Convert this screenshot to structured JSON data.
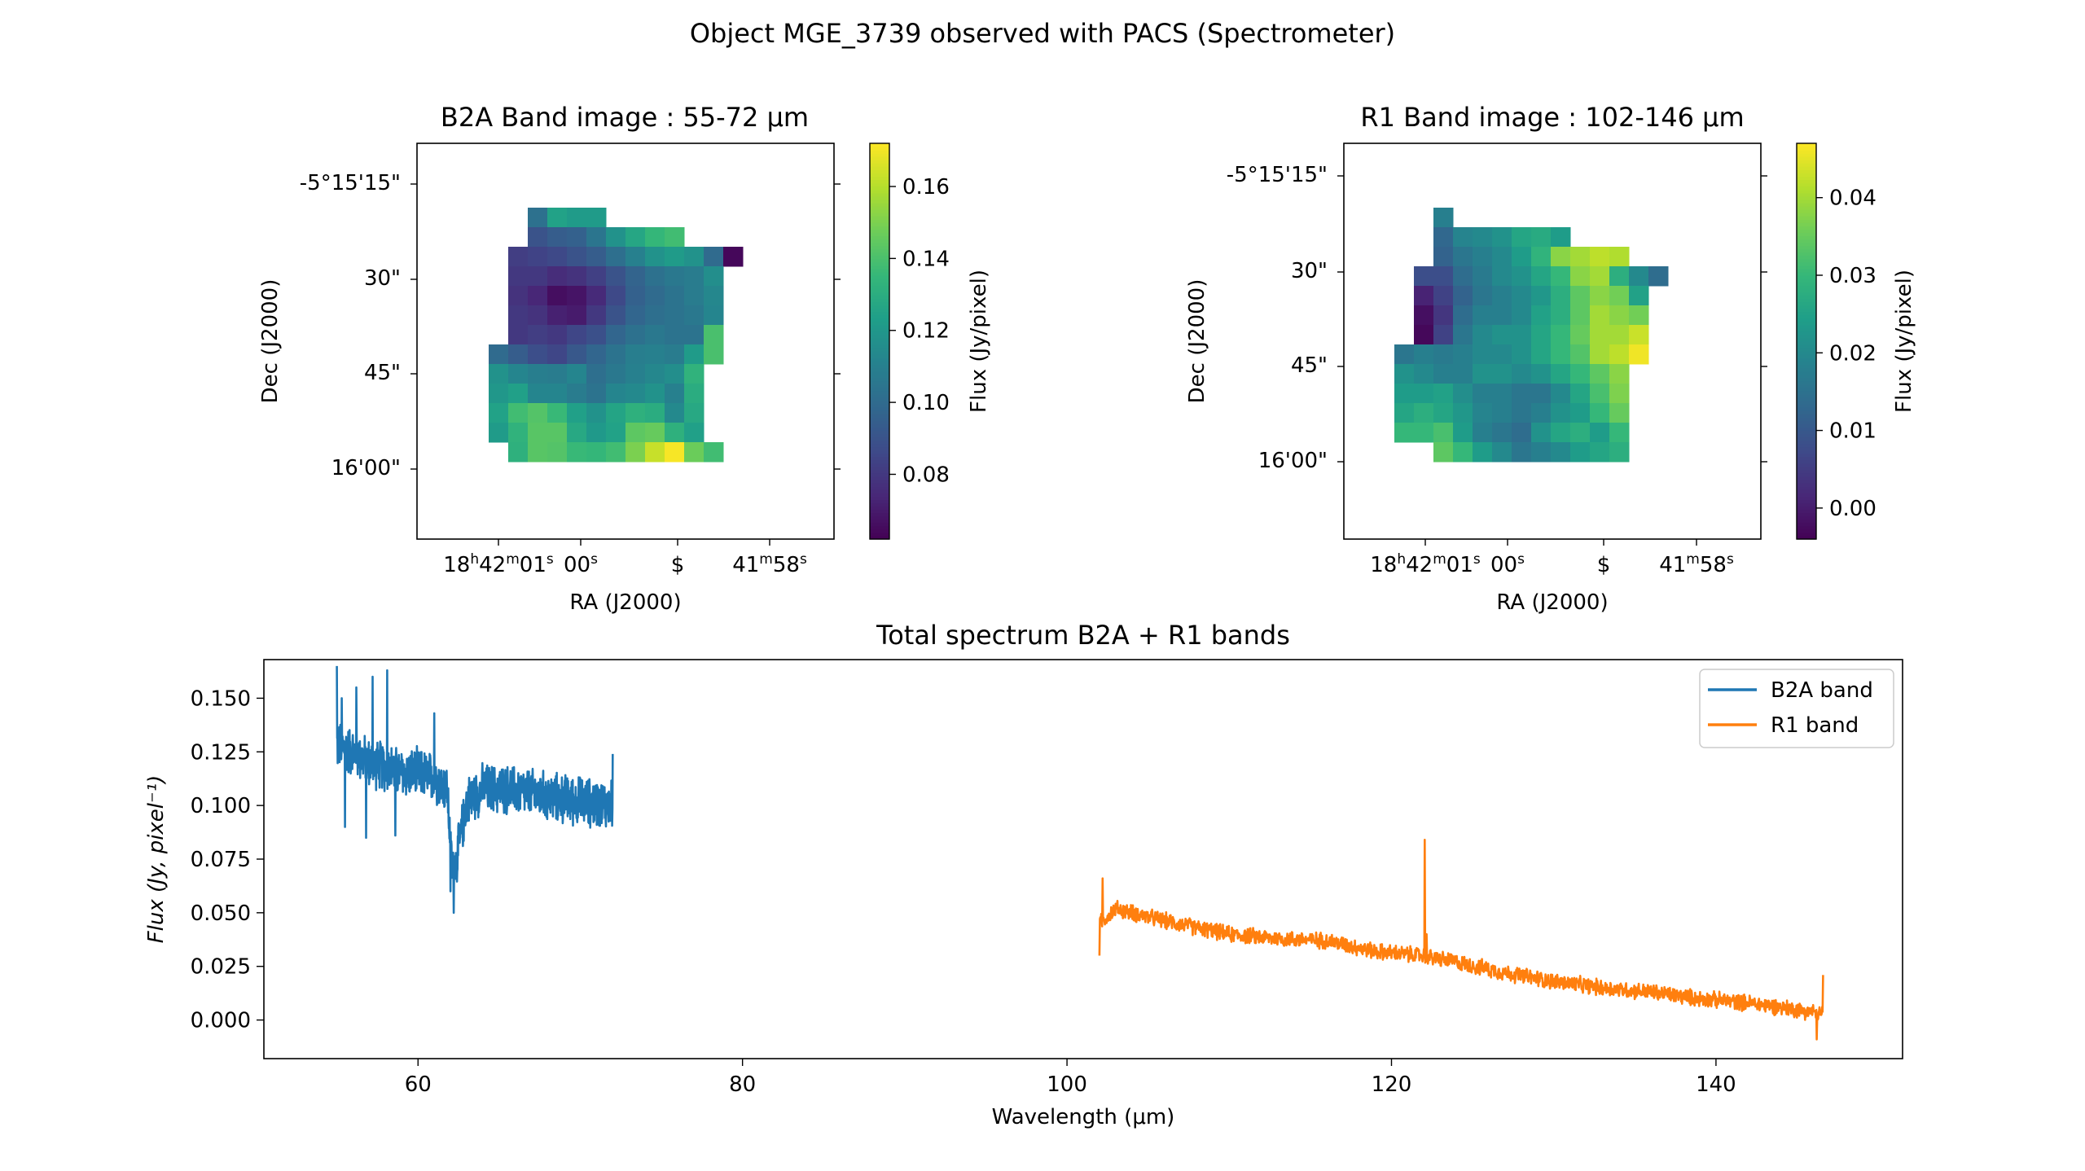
{
  "figure": {
    "title": "Object MGE_3739 observed with PACS (Spectrometer)"
  },
  "chart_data": [
    {
      "type": "heatmap",
      "title": "B2A Band image : 55-72 μm",
      "xlabel": "RA (J2000)",
      "ylabel": "Dec (J2000)",
      "x_ticks": [
        {
          "main": "18",
          "sup1": "h",
          "mid": "42",
          "sup2": "m",
          "end": "01",
          "sup3": "s"
        },
        {
          "main": "00",
          "sup3": "s"
        },
        {
          "main": "$"
        },
        {
          "main": "41",
          "sup2": "m",
          "end": "58",
          "sup3": "s"
        }
      ],
      "y_ticks": [
        "-5°15'15\"",
        "30\"",
        "45\"",
        "16'00\""
      ],
      "colorbar": {
        "label": "Flux (Jy/pixel)",
        "range": [
          0.062,
          0.172
        ],
        "ticks": [
          0.08,
          0.1,
          0.12,
          0.14,
          0.16
        ],
        "tick_labels": [
          "0.08",
          "0.10",
          "0.12",
          "0.14",
          "0.16"
        ]
      },
      "grid": [
        [
          null,
          null,
          null,
          null,
          null,
          null,
          null,
          null,
          null,
          null,
          null,
          null,
          null,
          null,
          null
        ],
        [
          null,
          null,
          0.103,
          0.125,
          0.122,
          0.122,
          null,
          null,
          null,
          null,
          null,
          null,
          null,
          null,
          null
        ],
        [
          null,
          null,
          0.09,
          0.094,
          0.096,
          0.105,
          0.118,
          0.127,
          0.135,
          0.138,
          null,
          null,
          null,
          null,
          null
        ],
        [
          null,
          0.082,
          0.084,
          0.086,
          0.09,
          0.094,
          0.102,
          0.11,
          0.118,
          0.122,
          0.118,
          0.1,
          0.064,
          null,
          null
        ],
        [
          null,
          0.08,
          0.08,
          0.076,
          0.078,
          0.083,
          0.09,
          0.097,
          0.103,
          0.106,
          0.108,
          0.116,
          null,
          null,
          null
        ],
        [
          null,
          0.078,
          0.074,
          0.066,
          0.068,
          0.075,
          0.086,
          0.096,
          0.1,
          0.104,
          0.108,
          0.113,
          null,
          null,
          null
        ],
        [
          null,
          0.08,
          0.078,
          0.072,
          0.07,
          0.08,
          0.09,
          0.098,
          0.102,
          0.104,
          0.106,
          0.112,
          null,
          null,
          null
        ],
        [
          null,
          0.08,
          0.082,
          0.08,
          0.085,
          0.089,
          0.098,
          0.103,
          0.106,
          0.104,
          0.104,
          0.14,
          null,
          null,
          null
        ],
        [
          0.1,
          0.094,
          0.088,
          0.085,
          0.092,
          0.098,
          0.104,
          0.109,
          0.11,
          0.108,
          0.122,
          0.14,
          null,
          null,
          null
        ],
        [
          0.118,
          0.112,
          0.109,
          0.108,
          0.112,
          0.102,
          0.106,
          0.11,
          0.113,
          0.116,
          0.133,
          null,
          null,
          null,
          null
        ],
        [
          0.12,
          0.124,
          0.112,
          0.112,
          0.108,
          0.104,
          0.112,
          0.114,
          0.118,
          0.11,
          0.13,
          null,
          null,
          null,
          null
        ],
        [
          0.125,
          0.138,
          0.142,
          0.136,
          0.124,
          0.118,
          0.126,
          0.132,
          0.13,
          0.114,
          0.128,
          null,
          null,
          null,
          null
        ],
        [
          0.122,
          0.133,
          0.143,
          0.143,
          0.128,
          0.121,
          0.125,
          0.144,
          0.146,
          0.132,
          0.124,
          null,
          null,
          null,
          null
        ],
        [
          null,
          0.132,
          0.143,
          0.142,
          0.136,
          0.135,
          0.138,
          0.15,
          0.163,
          0.171,
          0.147,
          0.138,
          null,
          null,
          null
        ],
        [
          null,
          null,
          null,
          null,
          null,
          null,
          null,
          null,
          null,
          null,
          null,
          null,
          null,
          null,
          null
        ]
      ]
    },
    {
      "type": "heatmap",
      "title": "R1 Band image : 102-146 μm",
      "xlabel": "RA (J2000)",
      "ylabel": "Dec (J2000)",
      "x_ticks": [
        {
          "main": "18",
          "sup1": "h",
          "mid": "42",
          "sup2": "m",
          "end": "01",
          "sup3": "s"
        },
        {
          "main": "00",
          "sup3": "s"
        },
        {
          "main": "$"
        },
        {
          "main": "41",
          "sup2": "m",
          "end": "58",
          "sup3": "s"
        }
      ],
      "y_ticks": [
        "-5°15'15\"",
        "30\"",
        "45\"",
        "16'00\""
      ],
      "colorbar": {
        "label": "Flux (Jy/pixel)",
        "range": [
          -0.004,
          0.047
        ],
        "ticks": [
          0.0,
          0.01,
          0.02,
          0.03,
          0.04
        ],
        "tick_labels": [
          "0.00",
          "0.01",
          "0.02",
          "0.03",
          "0.04"
        ]
      },
      "grid": [
        [
          null,
          null,
          null,
          null,
          null,
          null,
          null,
          null,
          null,
          null,
          null,
          null,
          null,
          null,
          null
        ],
        [
          null,
          null,
          0.018,
          null,
          null,
          null,
          null,
          null,
          null,
          null,
          null,
          null,
          null,
          null,
          null
        ],
        [
          null,
          null,
          0.013,
          0.019,
          0.02,
          0.022,
          0.026,
          0.027,
          0.024,
          null,
          null,
          null,
          null,
          null,
          null
        ],
        [
          null,
          null,
          0.012,
          0.016,
          0.018,
          0.02,
          0.024,
          0.029,
          0.038,
          0.04,
          0.042,
          0.041,
          null,
          null,
          null
        ],
        [
          null,
          0.008,
          0.008,
          0.014,
          0.017,
          0.02,
          0.022,
          0.026,
          0.03,
          0.038,
          0.04,
          0.028,
          0.02,
          0.014,
          null
        ],
        [
          null,
          0.001,
          0.006,
          0.012,
          0.016,
          0.018,
          0.02,
          0.023,
          0.028,
          0.034,
          0.038,
          0.036,
          0.025,
          null,
          null
        ],
        [
          null,
          -0.002,
          0.004,
          0.014,
          0.018,
          0.018,
          0.02,
          0.025,
          0.028,
          0.034,
          0.04,
          0.038,
          0.036,
          null,
          null
        ],
        [
          null,
          -0.003,
          0.006,
          0.016,
          0.02,
          0.022,
          0.022,
          0.026,
          0.03,
          0.035,
          0.04,
          0.04,
          0.043,
          null,
          null
        ],
        [
          0.016,
          0.018,
          0.017,
          0.018,
          0.02,
          0.02,
          0.022,
          0.026,
          0.03,
          0.033,
          0.04,
          0.042,
          0.046,
          null,
          null
        ],
        [
          0.022,
          0.02,
          0.018,
          0.018,
          0.022,
          0.022,
          0.02,
          0.022,
          0.026,
          0.03,
          0.034,
          0.038,
          null,
          null,
          null
        ],
        [
          0.024,
          0.024,
          0.025,
          0.021,
          0.018,
          0.018,
          0.016,
          0.016,
          0.02,
          0.026,
          0.032,
          0.037,
          null,
          null,
          null
        ],
        [
          0.026,
          0.028,
          0.026,
          0.023,
          0.019,
          0.018,
          0.016,
          0.018,
          0.022,
          0.024,
          0.03,
          0.035,
          null,
          null,
          null
        ],
        [
          0.03,
          0.03,
          0.032,
          0.024,
          0.018,
          0.016,
          0.014,
          0.022,
          0.026,
          0.028,
          0.024,
          0.03,
          null,
          null,
          null
        ],
        [
          null,
          null,
          0.034,
          0.03,
          0.024,
          0.02,
          0.016,
          0.018,
          0.02,
          0.024,
          0.026,
          0.028,
          null,
          null,
          null
        ],
        [
          null,
          null,
          null,
          null,
          null,
          null,
          null,
          null,
          null,
          null,
          null,
          null,
          null,
          null,
          null
        ]
      ]
    },
    {
      "type": "line",
      "title": "Total spectrum B2A + R1 bands",
      "xlabel": "Wavelength (μm)",
      "ylabel": "Flux (Jy, pixel⁻¹)",
      "xlim": [
        50.5,
        151.5
      ],
      "ylim": [
        -0.018,
        0.168
      ],
      "x_ticks": [
        60,
        80,
        100,
        120,
        140
      ],
      "y_ticks": [
        0.0,
        0.025,
        0.05,
        0.075,
        0.1,
        0.125,
        0.15
      ],
      "y_tick_labels": [
        "0.000",
        "0.025",
        "0.050",
        "0.075",
        "0.100",
        "0.125",
        "0.150"
      ],
      "legend_position": "top-right",
      "series": [
        {
          "name": "B2A band",
          "color": "#1f77b4",
          "range": [
            55.0,
            72.0
          ],
          "anchors": [
            [
              55.0,
              0.128
            ],
            [
              56.0,
              0.125
            ],
            [
              57.0,
              0.12
            ],
            [
              58.0,
              0.118
            ],
            [
              59.0,
              0.115
            ],
            [
              60.0,
              0.115
            ],
            [
              61.0,
              0.113
            ],
            [
              61.8,
              0.108
            ],
            [
              62.1,
              0.07
            ],
            [
              62.4,
              0.075
            ],
            [
              63.0,
              0.102
            ],
            [
              64.0,
              0.108
            ],
            [
              66.0,
              0.107
            ],
            [
              68.0,
              0.104
            ],
            [
              70.0,
              0.102
            ],
            [
              72.0,
              0.1
            ]
          ],
          "noise": 0.012,
          "spikes": [
            [
              55.0,
              0.165
            ],
            [
              55.3,
              0.15
            ],
            [
              56.2,
              0.155
            ],
            [
              57.2,
              0.16
            ],
            [
              58.1,
              0.163
            ],
            [
              55.5,
              0.09
            ],
            [
              56.8,
              0.085
            ],
            [
              58.6,
              0.086
            ],
            [
              61.0,
              0.143
            ],
            [
              62.2,
              0.05
            ],
            [
              62.0,
              0.06
            ],
            [
              72.0,
              0.124
            ]
          ]
        },
        {
          "name": "R1 band",
          "color": "#ff7f0e",
          "range": [
            102.0,
            146.6
          ],
          "anchors": [
            [
              102.0,
              0.045
            ],
            [
              103.0,
              0.052
            ],
            [
              105.0,
              0.048
            ],
            [
              108.0,
              0.043
            ],
            [
              110.0,
              0.04
            ],
            [
              113.0,
              0.038
            ],
            [
              116.0,
              0.037
            ],
            [
              119.0,
              0.032
            ],
            [
              121.9,
              0.03
            ],
            [
              124.0,
              0.027
            ],
            [
              127.0,
              0.022
            ],
            [
              130.0,
              0.018
            ],
            [
              133.0,
              0.015
            ],
            [
              136.0,
              0.013
            ],
            [
              139.0,
              0.01
            ],
            [
              142.0,
              0.008
            ],
            [
              144.0,
              0.006
            ],
            [
              146.6,
              0.003
            ]
          ],
          "noise": 0.004,
          "spikes": [
            [
              102.0,
              0.03
            ],
            [
              102.2,
              0.066
            ],
            [
              122.05,
              0.084
            ],
            [
              122.15,
              0.04
            ],
            [
              146.2,
              -0.009
            ],
            [
              146.6,
              0.021
            ]
          ]
        }
      ]
    }
  ]
}
